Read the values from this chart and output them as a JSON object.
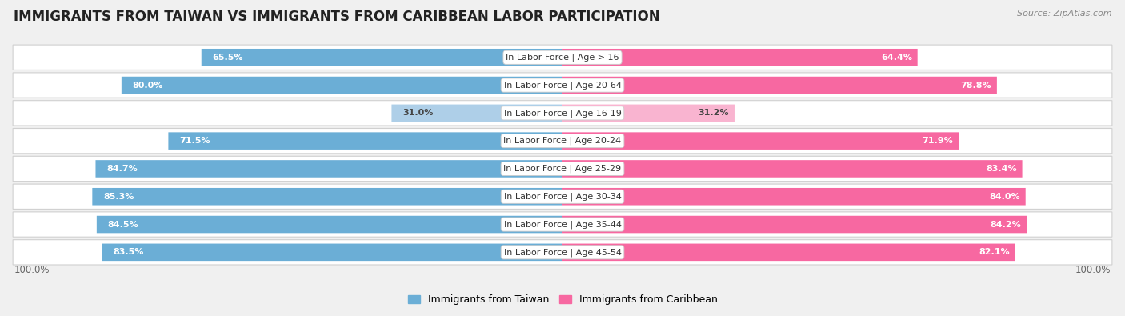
{
  "title": "IMMIGRANTS FROM TAIWAN VS IMMIGRANTS FROM CARIBBEAN LABOR PARTICIPATION",
  "source": "Source: ZipAtlas.com",
  "categories": [
    "In Labor Force | Age > 16",
    "In Labor Force | Age 20-64",
    "In Labor Force | Age 16-19",
    "In Labor Force | Age 20-24",
    "In Labor Force | Age 25-29",
    "In Labor Force | Age 30-34",
    "In Labor Force | Age 35-44",
    "In Labor Force | Age 45-54"
  ],
  "taiwan_values": [
    65.5,
    80.0,
    31.0,
    71.5,
    84.7,
    85.3,
    84.5,
    83.5
  ],
  "caribbean_values": [
    64.4,
    78.8,
    31.2,
    71.9,
    83.4,
    84.0,
    84.2,
    82.1
  ],
  "taiwan_color": "#6baed6",
  "taiwan_color_light": "#aecfe8",
  "caribbean_color": "#f768a1",
  "caribbean_color_light": "#f9b4d0",
  "taiwan_label": "Immigrants from Taiwan",
  "caribbean_label": "Immigrants from Caribbean",
  "bg_color": "#f0f0f0",
  "row_bg_color": "#ffffff",
  "bar_max": 100.0,
  "title_fontsize": 12,
  "label_fontsize": 8,
  "value_fontsize": 8,
  "legend_fontsize": 9,
  "axis_label": "100.0%",
  "light_threshold": 50
}
